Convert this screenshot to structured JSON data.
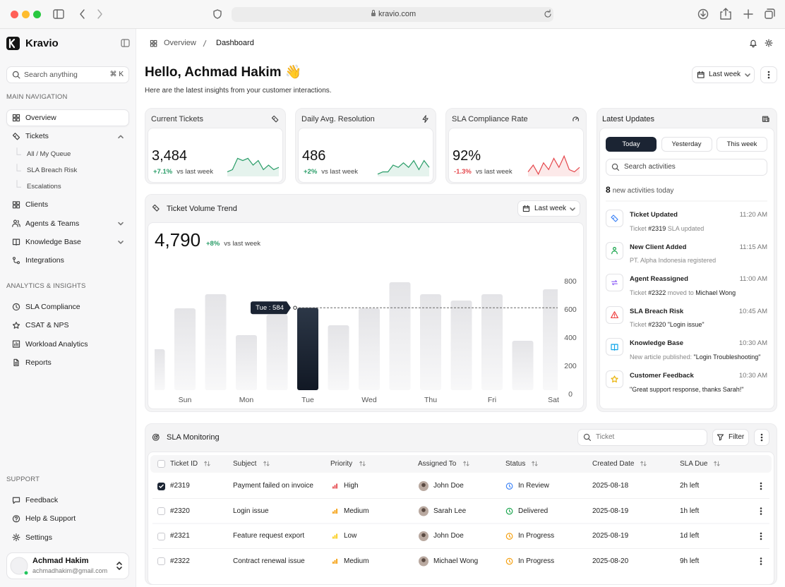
{
  "browser": {
    "url": "kravio.com"
  },
  "sidebar": {
    "brand": "Kravio",
    "search": {
      "placeholder": "Search anything",
      "shortcut": "⌘ K"
    },
    "sections": [
      {
        "title": "MAIN NAVIGATION",
        "items": [
          {
            "label": "Overview",
            "active": true
          },
          {
            "label": "Tickets",
            "expanded": true,
            "children": [
              "All / My Queue",
              "SLA Breach Risk",
              "Escalations"
            ]
          },
          {
            "label": "Clients"
          },
          {
            "label": "Agents & Teams",
            "expandable": true
          },
          {
            "label": "Knowledge Base",
            "expandable": true
          },
          {
            "label": "Integrations"
          }
        ]
      },
      {
        "title": "ANALYTICS & INSIGHTS",
        "items": [
          {
            "label": "SLA Compliance"
          },
          {
            "label": "CSAT & NPS"
          },
          {
            "label": "Workload Analytics"
          },
          {
            "label": "Reports"
          }
        ]
      },
      {
        "title": "SUPPORT",
        "items": [
          {
            "label": "Feedback"
          },
          {
            "label": "Help & Support"
          },
          {
            "label": "Settings"
          }
        ]
      }
    ],
    "user": {
      "initials": "AH",
      "name": "Achmad Hakim",
      "email": "achmadhakim@gmail.com"
    }
  },
  "breadcrumb": [
    "Overview",
    "Dashboard"
  ],
  "header": {
    "greeting": "Hello, Achmad Hakim 👋",
    "subtitle": "Here are the latest insights from your customer interactions.",
    "period": "Last week"
  },
  "stats": [
    {
      "title": "Current Tickets",
      "value": "3,484",
      "change": "+7.1%",
      "comparison": "vs last week",
      "color": "#2a9d68",
      "trend": [
        2,
        3,
        8,
        7,
        8,
        5,
        7,
        3,
        5,
        3,
        4
      ]
    },
    {
      "title": "Daily Avg. Resolution",
      "value": "486",
      "change": "+2%",
      "comparison": "vs last week",
      "color": "#2a9d68",
      "trend": [
        1,
        2,
        2,
        5,
        4,
        6,
        4,
        7,
        3,
        7,
        4
      ]
    },
    {
      "title": "SLA Compliance Rate",
      "value": "92%",
      "change": "-1.3%",
      "comparison": "vs last week",
      "color": "#e5484d",
      "trend": [
        2,
        5,
        1,
        6,
        3,
        8,
        4,
        9,
        3,
        2,
        4
      ]
    }
  ],
  "chart_data": {
    "type": "bar",
    "title": "Ticket Volume Trend",
    "total": "4,790",
    "change": "+8%",
    "comparison": "vs last week",
    "period": "Last week",
    "categories": [
      null,
      "Sun",
      null,
      "Mon",
      null,
      "Tue",
      null,
      "Wed",
      null,
      "Thu",
      null,
      "Fri",
      null,
      "Sat"
    ],
    "values": [
      290,
      580,
      680,
      390,
      535,
      584,
      460,
      580,
      765,
      680,
      635,
      680,
      350,
      715
    ],
    "color": "#e6e6e9",
    "highlight": "Tue",
    "highlight_color": "#1b2433",
    "tooltip": "Tue : 584",
    "ylim": [
      0,
      800
    ],
    "yticks": [
      0,
      200,
      400,
      600,
      800
    ]
  },
  "updates": {
    "title": "Latest Updates",
    "tabs": [
      "Today",
      "Yesterday",
      "This week"
    ],
    "active_tab": "Today",
    "search": "Search activities",
    "count": 8,
    "count_label": "new activities today",
    "items": [
      {
        "title": "Ticket Updated",
        "time": "11:20 AM",
        "color": "#3b82f6",
        "desc": [
          {
            "text": "Ticket "
          },
          {
            "text": "#2319",
            "bold": true
          },
          {
            "text": " SLA updated"
          }
        ]
      },
      {
        "title": "New Client Added",
        "time": "11:15 AM",
        "color": "#16a34a",
        "desc": [
          {
            "text": "PT. Alpha Indonesia registered"
          }
        ]
      },
      {
        "title": "Agent Reassigned",
        "time": "11:00 AM",
        "color": "#8b5cf6",
        "desc": [
          {
            "text": "Ticket "
          },
          {
            "text": "#2322",
            "bold": true
          },
          {
            "text": " moved to "
          },
          {
            "text": "Michael Wong",
            "bold": true
          }
        ]
      },
      {
        "title": "SLA Breach Risk",
        "time": "10:45 AM",
        "color": "#ef4444",
        "desc": [
          {
            "text": "Ticket "
          },
          {
            "text": "#2320 \"Login issue\"",
            "bold": true
          }
        ]
      },
      {
        "title": "Knowledge Base",
        "time": "10:30 AM",
        "color": "#0ea5e9",
        "desc": [
          {
            "text": "New article published: "
          },
          {
            "text": "\"Login Troubleshooting\"",
            "bold": true
          }
        ]
      },
      {
        "title": "Customer Feedback",
        "time": "10:30 AM",
        "color": "#eab308",
        "desc": [
          {
            "text": "\"Great support response, thanks Sarah!\"",
            "bold": true
          }
        ]
      }
    ]
  },
  "table": {
    "title": "SLA Monitoring",
    "search": "Ticket",
    "filter": "Filter",
    "columns": [
      "Ticket ID",
      "Subject",
      "Priority",
      "Assigned To",
      "Status",
      "Created Date",
      "SLA Due"
    ],
    "rows": [
      {
        "checked": true,
        "id": "#2319",
        "subject": "Payment failed on invoice",
        "priority": "High",
        "priority_color": "#e5484d",
        "assignee": "John Doe",
        "status": "In Review",
        "status_color": "#3b82f6",
        "created": "2025-08-18",
        "due": "2h left"
      },
      {
        "checked": false,
        "id": "#2320",
        "subject": "Login issue",
        "priority": "Medium",
        "priority_color": "#f59e0b",
        "assignee": "Sarah Lee",
        "status": "Delivered",
        "status_color": "#16a34a",
        "created": "2025-08-19",
        "due": "1h left"
      },
      {
        "checked": false,
        "id": "#2321",
        "subject": "Feature request export",
        "priority": "Low",
        "priority_color": "#facc15",
        "assignee": "John Doe",
        "status": "In Progress",
        "status_color": "#f59e0b",
        "created": "2025-08-19",
        "due": "1d left"
      },
      {
        "checked": false,
        "id": "#2322",
        "subject": "Contract renewal issue",
        "priority": "Medium",
        "priority_color": "#f59e0b",
        "assignee": "Michael Wong",
        "status": "In Progress",
        "status_color": "#f59e0b",
        "created": "2025-08-20",
        "due": "9h left"
      }
    ]
  }
}
